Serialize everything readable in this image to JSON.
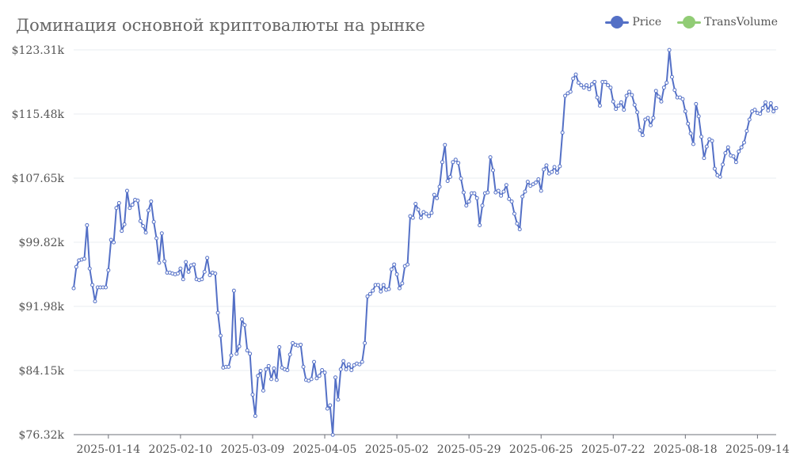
{
  "chart_data": {
    "type": "line",
    "title": "Доминация основной криптовалюты на рынке",
    "legend_position": "top-right",
    "grid": true,
    "series": [
      {
        "name": "Price",
        "color": "#5470c6",
        "values": [
          94.2,
          96.8,
          97.6,
          97.7,
          97.8,
          101.9,
          96.6,
          94.6,
          92.6,
          94.3,
          94.3,
          94.3,
          94.3,
          96.4,
          100.1,
          99.8,
          104.0,
          104.6,
          101.2,
          102.0,
          106.1,
          104.0,
          104.4,
          105.0,
          104.9,
          102.4,
          101.8,
          101.0,
          103.7,
          104.8,
          102.3,
          100.3,
          97.3,
          100.9,
          97.5,
          96.1,
          96.1,
          96.0,
          95.9,
          96.0,
          96.6,
          95.3,
          97.4,
          96.2,
          97.0,
          97.1,
          95.3,
          95.2,
          95.3,
          96.2,
          97.9,
          95.8,
          96.1,
          96.0,
          91.2,
          88.4,
          84.5,
          84.6,
          84.6,
          86.0,
          93.9,
          86.2,
          87.1,
          90.4,
          89.7,
          86.6,
          86.2,
          81.2,
          78.6,
          83.5,
          84.1,
          81.7,
          84.3,
          84.7,
          83.1,
          84.4,
          83.0,
          87.0,
          84.5,
          84.3,
          84.2,
          86.1,
          87.5,
          87.3,
          87.2,
          87.3,
          84.6,
          83.0,
          82.9,
          83.1,
          85.2,
          83.2,
          83.5,
          84.2,
          83.9,
          79.5,
          79.9,
          76.3,
          83.3,
          80.6,
          84.3,
          85.3,
          84.3,
          84.9,
          84.2,
          84.8,
          85.0,
          84.9,
          85.2,
          87.5,
          93.2,
          93.5,
          93.9,
          94.6,
          94.6,
          93.8,
          94.6,
          94.0,
          94.1,
          96.5,
          97.1,
          95.9,
          94.2,
          94.8,
          96.9,
          97.1,
          103.0,
          102.8,
          104.5,
          103.8,
          102.8,
          103.5,
          103.3,
          103.0,
          103.4,
          105.6,
          105.2,
          106.6,
          109.6,
          111.7,
          107.3,
          107.8,
          109.6,
          109.9,
          109.5,
          107.6,
          105.9,
          104.3,
          104.8,
          105.8,
          105.8,
          105.2,
          101.9,
          104.3,
          105.8,
          105.9,
          110.2,
          108.6,
          105.9,
          106.1,
          105.5,
          106.0,
          106.8,
          105.1,
          104.8,
          103.3,
          102.1,
          101.4,
          105.4,
          106.0,
          107.2,
          106.7,
          106.9,
          107.1,
          107.5,
          106.1,
          108.7,
          109.2,
          108.2,
          108.4,
          109.0,
          108.3,
          109.1,
          113.2,
          117.7,
          118.0,
          118.2,
          119.8,
          120.3,
          119.3,
          119.0,
          118.7,
          119.0,
          118.5,
          119.1,
          119.4,
          117.5,
          116.5,
          119.4,
          119.4,
          119.0,
          118.7,
          117.0,
          116.1,
          116.5,
          116.9,
          116.0,
          117.7,
          118.2,
          117.8,
          116.6,
          115.7,
          113.5,
          112.9,
          114.8,
          115.0,
          114.1,
          115.0,
          118.3,
          117.6,
          117.0,
          118.7,
          119.3,
          123.3,
          120.0,
          118.4,
          117.5,
          117.5,
          117.3,
          115.8,
          114.3,
          113.1,
          111.8,
          116.7,
          115.2,
          112.7,
          110.1,
          111.5,
          112.4,
          112.2,
          108.8,
          108.0,
          107.8,
          109.3,
          110.7,
          111.4,
          110.4,
          110.3,
          109.6,
          110.9,
          111.4,
          112.0,
          113.4,
          114.8,
          115.8,
          116.0,
          115.6,
          115.5,
          116.2,
          116.9,
          115.9,
          116.8,
          115.8,
          116.2
        ]
      },
      {
        "name": "TransVolume",
        "color": "#91cc75",
        "values": []
      }
    ],
    "x_tick_labels": [
      "2025-01-14",
      "2025-02-10",
      "2025-03-09",
      "2025-04-05",
      "2025-05-02",
      "2025-05-29",
      "2025-06-25",
      "2025-07-22",
      "2025-08-18",
      "2025-09-14"
    ],
    "x_tick_day_offsets": [
      13,
      40,
      67,
      94,
      121,
      148,
      175,
      202,
      229,
      256
    ],
    "y_tick_labels": [
      "$76.32k",
      "$84.15k",
      "$91.98k",
      "$99.82k",
      "$107.65k",
      "$115.48k",
      "$123.31k"
    ],
    "ylim": [
      76.32,
      123.31
    ]
  }
}
